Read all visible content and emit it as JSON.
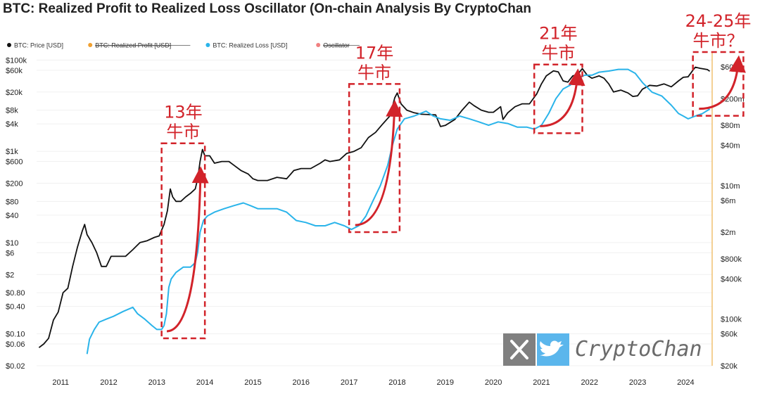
{
  "chart_data": {
    "type": "line",
    "title": "BTC: Realized Profit to Realized Loss Oscillator (On-chain Analysis By CryptoChan",
    "legend": [
      {
        "label": "BTC: Price [USD]",
        "color": "#111111",
        "struck": false
      },
      {
        "label": "BTC: Realized Profit [USD]",
        "color": "#f0a030",
        "struck": true
      },
      {
        "label": "BTC: Realized Loss [USD]",
        "color": "#2ab4ea",
        "struck": false
      },
      {
        "label": "Oscillator",
        "color": "#f08080",
        "struck": true
      }
    ],
    "x_ticks": [
      "2011",
      "2012",
      "2013",
      "2014",
      "2015",
      "2016",
      "2017",
      "2018",
      "2019",
      "2020",
      "2021",
      "2022",
      "2023",
      "2024"
    ],
    "xlim": [
      2010.5,
      2024.55
    ],
    "left_axis": {
      "scale": "log",
      "ylim": [
        0.02,
        150000
      ],
      "ticks": [
        {
          "label": "$100k",
          "value": 100000
        },
        {
          "label": "$60k",
          "value": 60000
        },
        {
          "label": "$20k",
          "value": 20000
        },
        {
          "label": "$8k",
          "value": 8000
        },
        {
          "label": "$4k",
          "value": 4000
        },
        {
          "label": "$1k",
          "value": 1000
        },
        {
          "label": "$600",
          "value": 600
        },
        {
          "label": "$200",
          "value": 200
        },
        {
          "label": "$80",
          "value": 80
        },
        {
          "label": "$40",
          "value": 40
        },
        {
          "label": "$10",
          "value": 10
        },
        {
          "label": "$6",
          "value": 6
        },
        {
          "label": "$2",
          "value": 2
        },
        {
          "label": "$0.80",
          "value": 0.8
        },
        {
          "label": "$0.40",
          "value": 0.4
        },
        {
          "label": "$0.10",
          "value": 0.1
        },
        {
          "label": "$0.06",
          "value": 0.06
        },
        {
          "label": "$0.02",
          "value": 0.02
        }
      ]
    },
    "right_axis": {
      "scale": "log",
      "ylim": [
        20000,
        1000000000
      ],
      "ticks": [
        {
          "label": "$600m",
          "value": 600000000
        },
        {
          "label": "$200m",
          "value": 200000000
        },
        {
          "label": "$80m",
          "value": 80000000
        },
        {
          "label": "$40m",
          "value": 40000000
        },
        {
          "label": "$10m",
          "value": 10000000
        },
        {
          "label": "$6m",
          "value": 6000000
        },
        {
          "label": "$2m",
          "value": 2000000
        },
        {
          "label": "$800k",
          "value": 800000
        },
        {
          "label": "$400k",
          "value": 400000
        },
        {
          "label": "$100k",
          "value": 100000
        },
        {
          "label": "$60k",
          "value": 60000
        },
        {
          "label": "$20k",
          "value": 20000
        }
      ]
    },
    "series": [
      {
        "name": "BTC: Price [USD]",
        "axis": "left",
        "color": "#111111",
        "points": [
          [
            2010.55,
            0.05
          ],
          [
            2010.65,
            0.06
          ],
          [
            2010.75,
            0.08
          ],
          [
            2010.85,
            0.2
          ],
          [
            2010.95,
            0.3
          ],
          [
            2011.05,
            0.8
          ],
          [
            2011.15,
            1
          ],
          [
            2011.25,
            3
          ],
          [
            2011.35,
            8
          ],
          [
            2011.45,
            18
          ],
          [
            2011.5,
            25
          ],
          [
            2011.55,
            15
          ],
          [
            2011.65,
            10
          ],
          [
            2011.75,
            6
          ],
          [
            2011.85,
            3
          ],
          [
            2011.95,
            3
          ],
          [
            2012.05,
            5
          ],
          [
            2012.2,
            5
          ],
          [
            2012.35,
            5
          ],
          [
            2012.5,
            7
          ],
          [
            2012.65,
            10
          ],
          [
            2012.8,
            11
          ],
          [
            2012.95,
            13
          ],
          [
            2013.05,
            14
          ],
          [
            2013.15,
            25
          ],
          [
            2013.22,
            50
          ],
          [
            2013.28,
            150
          ],
          [
            2013.33,
            100
          ],
          [
            2013.4,
            80
          ],
          [
            2013.5,
            80
          ],
          [
            2013.6,
            100
          ],
          [
            2013.7,
            120
          ],
          [
            2013.8,
            150
          ],
          [
            2013.85,
            250
          ],
          [
            2013.9,
            600
          ],
          [
            2013.95,
            1100
          ],
          [
            2014.0,
            800
          ],
          [
            2014.1,
            800
          ],
          [
            2014.2,
            550
          ],
          [
            2014.35,
            600
          ],
          [
            2014.5,
            600
          ],
          [
            2014.6,
            500
          ],
          [
            2014.75,
            380
          ],
          [
            2014.9,
            320
          ],
          [
            2015.0,
            250
          ],
          [
            2015.1,
            230
          ],
          [
            2015.3,
            230
          ],
          [
            2015.5,
            270
          ],
          [
            2015.7,
            250
          ],
          [
            2015.85,
            380
          ],
          [
            2016.0,
            420
          ],
          [
            2016.2,
            420
          ],
          [
            2016.4,
            550
          ],
          [
            2016.5,
            650
          ],
          [
            2016.6,
            600
          ],
          [
            2016.8,
            650
          ],
          [
            2016.95,
            900
          ],
          [
            2017.1,
            1000
          ],
          [
            2017.25,
            1200
          ],
          [
            2017.4,
            2000
          ],
          [
            2017.55,
            2600
          ],
          [
            2017.7,
            4000
          ],
          [
            2017.85,
            6000
          ],
          [
            2017.95,
            15000
          ],
          [
            2018.0,
            19000
          ],
          [
            2018.08,
            11000
          ],
          [
            2018.2,
            8000
          ],
          [
            2018.35,
            7000
          ],
          [
            2018.5,
            6500
          ],
          [
            2018.65,
            6400
          ],
          [
            2018.8,
            6300
          ],
          [
            2018.9,
            3500
          ],
          [
            2019.0,
            3700
          ],
          [
            2019.2,
            5000
          ],
          [
            2019.35,
            8000
          ],
          [
            2019.5,
            12000
          ],
          [
            2019.6,
            10000
          ],
          [
            2019.75,
            8000
          ],
          [
            2019.9,
            7200
          ],
          [
            2020.0,
            7200
          ],
          [
            2020.15,
            9500
          ],
          [
            2020.2,
            5000
          ],
          [
            2020.3,
            7000
          ],
          [
            2020.45,
            9500
          ],
          [
            2020.6,
            11000
          ],
          [
            2020.75,
            11000
          ],
          [
            2020.9,
            18000
          ],
          [
            2021.0,
            30000
          ],
          [
            2021.1,
            45000
          ],
          [
            2021.25,
            58000
          ],
          [
            2021.35,
            55000
          ],
          [
            2021.45,
            35000
          ],
          [
            2021.55,
            33000
          ],
          [
            2021.65,
            45000
          ],
          [
            2021.75,
            48000
          ],
          [
            2021.85,
            65000
          ],
          [
            2021.95,
            47000
          ],
          [
            2022.05,
            40000
          ],
          [
            2022.2,
            45000
          ],
          [
            2022.3,
            40000
          ],
          [
            2022.4,
            30000
          ],
          [
            2022.5,
            20000
          ],
          [
            2022.65,
            22000
          ],
          [
            2022.8,
            19000
          ],
          [
            2022.9,
            16000
          ],
          [
            2023.0,
            16500
          ],
          [
            2023.1,
            23000
          ],
          [
            2023.25,
            28000
          ],
          [
            2023.4,
            27000
          ],
          [
            2023.55,
            30000
          ],
          [
            2023.7,
            26000
          ],
          [
            2023.85,
            35000
          ],
          [
            2023.95,
            42000
          ],
          [
            2024.05,
            43000
          ],
          [
            2024.15,
            60000
          ],
          [
            2024.2,
            70000
          ],
          [
            2024.3,
            66000
          ],
          [
            2024.45,
            62000
          ],
          [
            2024.5,
            57000
          ]
        ]
      },
      {
        "name": "BTC: Realized Loss [USD]",
        "axis": "right",
        "color": "#2ab4ea",
        "points": [
          [
            2011.55,
            30000
          ],
          [
            2011.6,
            50000
          ],
          [
            2011.7,
            70000
          ],
          [
            2011.8,
            90000
          ],
          [
            2011.95,
            100000
          ],
          [
            2012.1,
            110000
          ],
          [
            2012.3,
            130000
          ],
          [
            2012.5,
            150000
          ],
          [
            2012.6,
            120000
          ],
          [
            2012.75,
            100000
          ],
          [
            2012.9,
            80000
          ],
          [
            2013.0,
            70000
          ],
          [
            2013.1,
            70000
          ],
          [
            2013.15,
            80000
          ],
          [
            2013.2,
            120000
          ],
          [
            2013.25,
            300000
          ],
          [
            2013.3,
            400000
          ],
          [
            2013.4,
            500000
          ],
          [
            2013.55,
            600000
          ],
          [
            2013.7,
            600000
          ],
          [
            2013.8,
            700000
          ],
          [
            2013.85,
            1000000
          ],
          [
            2013.9,
            2000000
          ],
          [
            2013.97,
            3000000
          ],
          [
            2014.05,
            3500000
          ],
          [
            2014.2,
            4000000
          ],
          [
            2014.4,
            4500000
          ],
          [
            2014.6,
            5000000
          ],
          [
            2014.8,
            5500000
          ],
          [
            2014.95,
            5000000
          ],
          [
            2015.1,
            4500000
          ],
          [
            2015.3,
            4500000
          ],
          [
            2015.5,
            4500000
          ],
          [
            2015.7,
            4000000
          ],
          [
            2015.9,
            3000000
          ],
          [
            2016.1,
            2800000
          ],
          [
            2016.3,
            2500000
          ],
          [
            2016.5,
            2500000
          ],
          [
            2016.7,
            2800000
          ],
          [
            2016.9,
            2500000
          ],
          [
            2017.05,
            2200000
          ],
          [
            2017.2,
            2500000
          ],
          [
            2017.35,
            3500000
          ],
          [
            2017.5,
            6000000
          ],
          [
            2017.65,
            10000000
          ],
          [
            2017.8,
            20000000
          ],
          [
            2017.9,
            40000000
          ],
          [
            2018.0,
            70000000
          ],
          [
            2018.15,
            100000000
          ],
          [
            2018.35,
            110000000
          ],
          [
            2018.6,
            130000000
          ],
          [
            2018.75,
            110000000
          ],
          [
            2018.9,
            100000000
          ],
          [
            2019.1,
            95000000
          ],
          [
            2019.3,
            110000000
          ],
          [
            2019.5,
            100000000
          ],
          [
            2019.7,
            90000000
          ],
          [
            2019.9,
            80000000
          ],
          [
            2020.1,
            90000000
          ],
          [
            2020.3,
            85000000
          ],
          [
            2020.5,
            75000000
          ],
          [
            2020.7,
            75000000
          ],
          [
            2020.85,
            70000000
          ],
          [
            2021.0,
            80000000
          ],
          [
            2021.15,
            120000000
          ],
          [
            2021.3,
            200000000
          ],
          [
            2021.45,
            280000000
          ],
          [
            2021.6,
            320000000
          ],
          [
            2021.75,
            400000000
          ],
          [
            2021.9,
            450000000
          ],
          [
            2022.05,
            450000000
          ],
          [
            2022.2,
            500000000
          ],
          [
            2022.4,
            520000000
          ],
          [
            2022.6,
            550000000
          ],
          [
            2022.8,
            550000000
          ],
          [
            2022.95,
            480000000
          ],
          [
            2023.1,
            350000000
          ],
          [
            2023.3,
            250000000
          ],
          [
            2023.5,
            220000000
          ],
          [
            2023.7,
            160000000
          ],
          [
            2023.85,
            120000000
          ],
          [
            2023.95,
            110000000
          ],
          [
            2024.05,
            100000000
          ],
          [
            2024.2,
            110000000
          ],
          [
            2024.35,
            120000000
          ],
          [
            2024.5,
            140000000
          ]
        ]
      }
    ],
    "annotations": [
      {
        "line1": "13年",
        "line2": "牛市",
        "x_range": [
          2013.1,
          2014.0
        ],
        "y_range_left": [
          0.08,
          1500
        ]
      },
      {
        "line1": "17年",
        "line2": "牛市",
        "x_range": [
          2017.0,
          2018.05
        ],
        "y_range_left": [
          17,
          30000
        ]
      },
      {
        "line1": "21年",
        "line2": "牛市",
        "x_range": [
          2020.85,
          2021.85
        ],
        "y_range_left": [
          2500,
          80000
        ]
      },
      {
        "line1": "24-25年",
        "line2": "牛市？",
        "x_range": [
          2024.15,
          2025.2
        ],
        "y_range_left": [
          6000,
          150000
        ]
      }
    ]
  },
  "watermark": {
    "text": "CryptoChan",
    "x_icon": "x-logo-icon",
    "twitter_icon": "twitter-bird-icon"
  }
}
